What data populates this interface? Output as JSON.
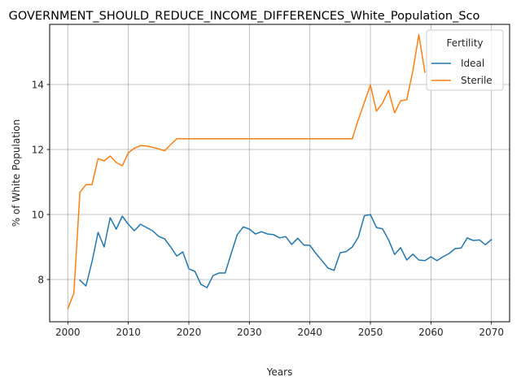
{
  "chart_data": {
    "type": "line",
    "title": "GOVERNMENT_SHOULD_REDUCE_INCOME_DIFFERENCES_White_Population_Sco",
    "xlabel": "Years",
    "ylabel": "% of White Population",
    "xlim": [
      1997,
      2073
    ],
    "ylim": [
      6.7,
      15.85
    ],
    "xticks": [
      2000,
      2010,
      2020,
      2030,
      2040,
      2050,
      2060,
      2070
    ],
    "yticks": [
      8,
      10,
      12,
      14
    ],
    "grid": true,
    "legend": {
      "title": "Fertility",
      "placement": "top-right"
    },
    "colors": {
      "Ideal": "#1f77b4",
      "Sterile": "#ff7f0e"
    },
    "series": [
      {
        "name": "Ideal",
        "x": [
          2002,
          2003,
          2004,
          2005,
          2006,
          2007,
          2008,
          2009,
          2010,
          2011,
          2012,
          2013,
          2014,
          2015,
          2016,
          2017,
          2018,
          2019,
          2020,
          2021,
          2022,
          2023,
          2024,
          2025,
          2026,
          2027,
          2028,
          2029,
          2030,
          2031,
          2032,
          2033,
          2034,
          2035,
          2036,
          2037,
          2038,
          2039,
          2040,
          2041,
          2042,
          2043,
          2044,
          2045,
          2046,
          2047,
          2048,
          2049,
          2050,
          2051,
          2052,
          2053,
          2054,
          2055,
          2056,
          2057,
          2058,
          2059,
          2060,
          2061,
          2062,
          2063,
          2064,
          2065,
          2066,
          2067,
          2068,
          2069,
          2070
        ],
        "values": [
          7.98,
          7.8,
          8.55,
          9.45,
          9.0,
          9.9,
          9.55,
          9.95,
          9.7,
          9.5,
          9.7,
          9.6,
          9.5,
          9.33,
          9.25,
          9.0,
          8.72,
          8.85,
          8.33,
          8.25,
          7.85,
          7.75,
          8.12,
          8.2,
          8.2,
          8.8,
          9.38,
          9.62,
          9.55,
          9.4,
          9.47,
          9.4,
          9.38,
          9.28,
          9.32,
          9.08,
          9.27,
          9.06,
          9.05,
          8.8,
          8.58,
          8.35,
          8.28,
          8.82,
          8.86,
          9.0,
          9.3,
          9.96,
          10.0,
          9.6,
          9.56,
          9.22,
          8.77,
          8.98,
          8.6,
          8.78,
          8.6,
          8.58,
          8.7,
          8.58,
          8.7,
          8.8,
          8.95,
          8.97,
          9.28,
          9.2,
          9.22,
          9.07,
          9.23
        ]
      },
      {
        "name": "Sterile",
        "x": [
          2000,
          2001,
          2002,
          2003,
          2004,
          2005,
          2006,
          2007,
          2008,
          2009,
          2010,
          2011,
          2012,
          2013,
          2014,
          2015,
          2016,
          2017,
          2018,
          2019,
          2020,
          2025,
          2030,
          2035,
          2040,
          2045,
          2047,
          2048,
          2049,
          2050,
          2051,
          2052,
          2053,
          2054,
          2055,
          2056,
          2057,
          2058,
          2059
        ],
        "values": [
          7.1,
          7.58,
          10.68,
          10.92,
          10.92,
          11.72,
          11.65,
          11.8,
          11.6,
          11.5,
          11.9,
          12.04,
          12.12,
          12.11,
          12.07,
          12.02,
          11.96,
          12.15,
          12.33,
          12.33,
          12.33,
          12.33,
          12.33,
          12.33,
          12.33,
          12.33,
          12.33,
          12.92,
          13.45,
          13.98,
          13.18,
          13.43,
          13.82,
          13.13,
          13.5,
          13.53,
          14.4,
          15.53,
          14.38
        ]
      }
    ]
  }
}
